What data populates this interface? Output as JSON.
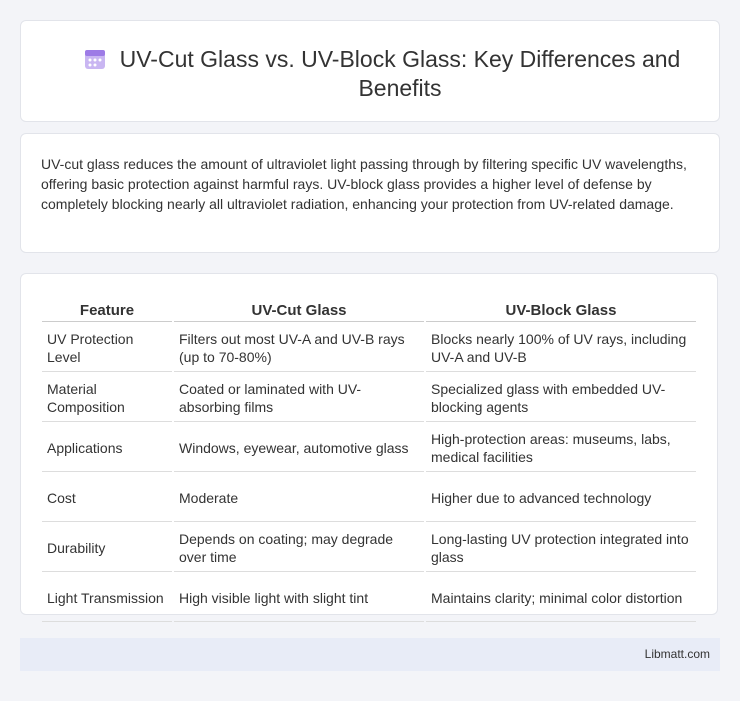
{
  "header": {
    "title": "UV-Cut Glass vs. UV-Block Glass: Key Differences and Benefits"
  },
  "intro": "UV-cut glass reduces the amount of ultraviolet light passing through by filtering specific UV wavelengths, offering basic protection against harmful rays. UV-block glass provides a higher level of defense by completely blocking nearly all ultraviolet radiation, enhancing your protection from UV-related damage.",
  "table": {
    "headers": [
      "Feature",
      "UV-Cut Glass",
      "UV-Block Glass"
    ],
    "rows": [
      [
        "UV Protection Level",
        "Filters out most UV-A and UV-B rays (up to 70-80%)",
        "Blocks nearly 100% of UV rays, including UV-A and UV-B"
      ],
      [
        "Material Composition",
        "Coated or laminated with UV-absorbing films",
        "Specialized glass with embedded UV-blocking agents"
      ],
      [
        "Applications",
        "Windows, eyewear, automotive glass",
        "High-protection areas: museums, labs, medical facilities"
      ],
      [
        "Cost",
        "Moderate",
        "Higher due to advanced technology"
      ],
      [
        "Durability",
        "Depends on coating; may degrade over time",
        "Long-lasting UV protection integrated into glass"
      ],
      [
        "Light Transmission",
        "High visible light with slight tint",
        "Maintains clarity; minimal color distortion"
      ]
    ]
  },
  "footer": "Libmatt.com"
}
